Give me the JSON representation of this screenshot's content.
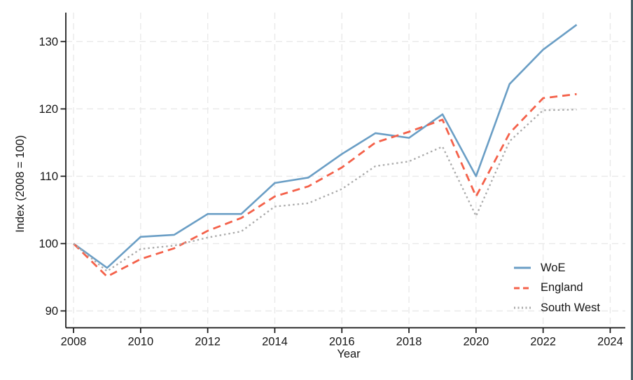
{
  "page": {
    "background": "#FFFFFF",
    "right_edge_bar_color": "#4A6066"
  },
  "colors": {
    "axis": "#151515",
    "tick_text": "#151515",
    "grid": "#E9E9E9"
  },
  "chart_data": {
    "type": "line",
    "title": "",
    "xlabel": "Year",
    "ylabel": "Index (2008 = 100)",
    "grid": true,
    "legend_position": "bottom-right-inside",
    "x_ticks": [
      2008,
      2010,
      2012,
      2014,
      2016,
      2018,
      2020,
      2022,
      2024
    ],
    "y_ticks": [
      90,
      100,
      110,
      120,
      130
    ],
    "xlim": [
      2007.77,
      2024.45
    ],
    "ylim": [
      87.5,
      134.3
    ],
    "x": [
      2008,
      2009,
      2010,
      2011,
      2012,
      2013,
      2014,
      2015,
      2016,
      2017,
      2018,
      2019,
      2020,
      2021,
      2022,
      2023
    ],
    "series": [
      {
        "name": "WoE",
        "color": "#6A9EC5",
        "style": "solid",
        "values": [
          100,
          96.4,
          101.0,
          101.3,
          104.4,
          104.4,
          109.0,
          109.8,
          113.3,
          116.4,
          115.7,
          119.2,
          110.0,
          123.7,
          128.8,
          132.5
        ]
      },
      {
        "name": "England",
        "color": "#F4614A",
        "style": "dashed",
        "values": [
          100,
          95.1,
          97.7,
          99.3,
          101.9,
          103.8,
          107.0,
          108.5,
          111.3,
          115.0,
          116.6,
          118.4,
          107.0,
          116.4,
          121.6,
          122.2
        ]
      },
      {
        "name": "South West",
        "color": "#AAAAAA",
        "style": "dotted",
        "values": [
          100,
          95.9,
          99.2,
          99.7,
          100.9,
          101.8,
          105.5,
          106.0,
          108.1,
          111.5,
          112.2,
          114.4,
          104.1,
          115.2,
          119.8,
          119.9
        ]
      }
    ]
  }
}
